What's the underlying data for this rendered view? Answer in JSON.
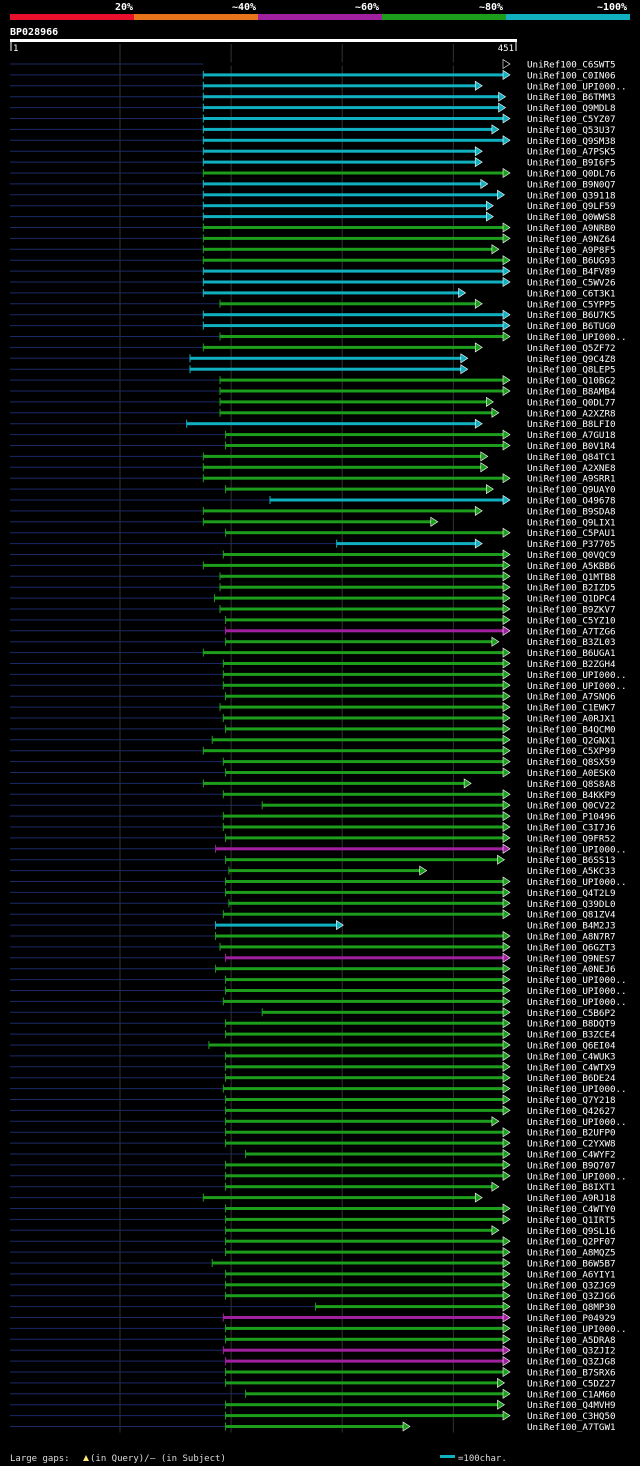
{
  "chart_data": {
    "type": "alignment-overview",
    "title": "",
    "query": {
      "id": "BP028966",
      "start_label": "1",
      "end_label": "451",
      "length": 451
    },
    "identity_scale": [
      {
        "label": "20%",
        "color": "#e8102a"
      },
      {
        "label": "~40%",
        "color": "#e8741c"
      },
      {
        "label": "~60%",
        "color": "#a020a0"
      },
      {
        "label": "~80%",
        "color": "#1c9e1c"
      },
      {
        "label": "~100%",
        "color": "#10b0c0"
      }
    ],
    "legend": {
      "large_gaps": "Large gaps:",
      "in_query": "(in Query)/",
      "in_subject": "– (in Subject)",
      "scale": "=100char.",
      "scale_chars": 100
    },
    "gridlines_at": [
      100,
      200,
      300,
      400
    ],
    "hits": [
      [
        "UniRef100_C6SWT5",
        175,
        451,
        5
      ],
      [
        "UniRef100_C0IN06",
        175,
        451,
        4
      ],
      [
        "UniRef100_UPI000..",
        175,
        426,
        4
      ],
      [
        "UniRef100_B6TMM3",
        175,
        447,
        4
      ],
      [
        "UniRef100_Q9MDL8",
        175,
        447,
        4
      ],
      [
        "UniRef100_C5YZ07",
        175,
        451,
        4
      ],
      [
        "UniRef100_Q53U37",
        175,
        441,
        4
      ],
      [
        "UniRef100_Q9SM38",
        175,
        451,
        4
      ],
      [
        "UniRef100_A7PSK5",
        175,
        426,
        4
      ],
      [
        "UniRef100_B9I6F5",
        175,
        426,
        4
      ],
      [
        "UniRef100_Q0DL76",
        175,
        451,
        3
      ],
      [
        "UniRef100_B9N0Q7",
        175,
        431,
        4
      ],
      [
        "UniRef100_Q39118",
        175,
        446,
        4
      ],
      [
        "UniRef100_Q9LF59",
        175,
        436,
        4
      ],
      [
        "UniRef100_Q0WWS8",
        175,
        436,
        4
      ],
      [
        "UniRef100_A9NRB0",
        175,
        451,
        3
      ],
      [
        "UniRef100_A9NZ64",
        175,
        451,
        3
      ],
      [
        "UniRef100_A9P8F5",
        175,
        441,
        3
      ],
      [
        "UniRef100_B6UG93",
        175,
        451,
        3
      ],
      [
        "UniRef100_B4FV89",
        175,
        451,
        4
      ],
      [
        "UniRef100_C5WV26",
        175,
        451,
        4
      ],
      [
        "UniRef100_C6T3K1",
        175,
        411,
        4
      ],
      [
        "UniRef100_C5YPP5",
        190,
        426,
        3
      ],
      [
        "UniRef100_B6U7K5",
        175,
        451,
        4
      ],
      [
        "UniRef100_B6TUG0",
        175,
        451,
        4
      ],
      [
        "UniRef100_UPI000..",
        190,
        451,
        3
      ],
      [
        "UniRef100_Q5ZF72",
        175,
        426,
        3
      ],
      [
        "UniRef100_Q9C4Z8",
        163,
        413,
        4
      ],
      [
        "UniRef100_Q8LEP5",
        163,
        413,
        4
      ],
      [
        "UniRef100_Q10BG2",
        190,
        451,
        3
      ],
      [
        "UniRef100_B8AMB4",
        190,
        451,
        3
      ],
      [
        "UniRef100_Q0DL77",
        190,
        436,
        3
      ],
      [
        "UniRef100_A2XZR8",
        190,
        441,
        3
      ],
      [
        "UniRef100_B8LFI0",
        160,
        426,
        4
      ],
      [
        "UniRef100_A7GU18",
        195,
        451,
        3
      ],
      [
        "UniRef100_B0V1R4",
        195,
        451,
        3
      ],
      [
        "UniRef100_Q84TC1",
        175,
        431,
        3
      ],
      [
        "UniRef100_A2XNE8",
        175,
        431,
        3
      ],
      [
        "UniRef100_A9SRR1",
        175,
        451,
        3
      ],
      [
        "UniRef100_Q9UAY0",
        195,
        436,
        3
      ],
      [
        "UniRef100_O49678",
        235,
        451,
        4
      ],
      [
        "UniRef100_B9SDA8",
        175,
        426,
        3
      ],
      [
        "UniRef100_Q9LIX1",
        175,
        386,
        3
      ],
      [
        "UniRef100_C5PAU1",
        195,
        451,
        3
      ],
      [
        "UniRef100_P37705",
        295,
        426,
        4
      ],
      [
        "UniRef100_Q0VQC9",
        193,
        451,
        3
      ],
      [
        "UniRef100_A5KBB6",
        175,
        451,
        3
      ],
      [
        "UniRef100_Q1MTB8",
        190,
        451,
        3
      ],
      [
        "UniRef100_B2IZD5",
        190,
        451,
        3
      ],
      [
        "UniRef100_Q1DPC4",
        185,
        451,
        3
      ],
      [
        "UniRef100_B9ZKV7",
        190,
        451,
        3
      ],
      [
        "UniRef100_C5YZ10",
        195,
        451,
        3
      ],
      [
        "UniRef100_A7TZG6",
        195,
        451,
        2
      ],
      [
        "UniRef100_B3ZL03",
        195,
        441,
        3
      ],
      [
        "UniRef100_B6UGA1",
        175,
        451,
        3
      ],
      [
        "UniRef100_B2ZGH4",
        193,
        451,
        3
      ],
      [
        "UniRef100_UPI000..",
        193,
        451,
        3
      ],
      [
        "UniRef100_UPI000..",
        193,
        451,
        3
      ],
      [
        "UniRef100_A7SNQ6",
        195,
        451,
        3
      ],
      [
        "UniRef100_C1EWK7",
        190,
        451,
        3
      ],
      [
        "UniRef100_A0RJX1",
        193,
        451,
        3
      ],
      [
        "UniRef100_B4QCM0",
        195,
        451,
        3
      ],
      [
        "UniRef100_Q2GNX1",
        183,
        451,
        3
      ],
      [
        "UniRef100_C5XP99",
        175,
        451,
        3
      ],
      [
        "UniRef100_Q8SX59",
        193,
        451,
        3
      ],
      [
        "UniRef100_A0ESK0",
        195,
        451,
        3
      ],
      [
        "UniRef100_Q8S8A8",
        175,
        416,
        3
      ],
      [
        "UniRef100_B4KKP9",
        193,
        451,
        3
      ],
      [
        "UniRef100_Q0CV22",
        228,
        451,
        3
      ],
      [
        "UniRef100_P10496",
        193,
        451,
        3
      ],
      [
        "UniRef100_C3I7J6",
        193,
        451,
        3
      ],
      [
        "UniRef100_Q9FR52",
        195,
        451,
        3
      ],
      [
        "UniRef100_UPI000..",
        186,
        451,
        2
      ],
      [
        "UniRef100_B6SS13",
        195,
        446,
        3
      ],
      [
        "UniRef100_A5KC33",
        198,
        376,
        3
      ],
      [
        "UniRef100_UPI000..",
        195,
        451,
        3
      ],
      [
        "UniRef100_Q4T2L9",
        195,
        451,
        3
      ],
      [
        "UniRef100_Q39DL0",
        198,
        451,
        3
      ],
      [
        "UniRef100_Q81ZV4",
        193,
        451,
        3
      ],
      [
        "UniRef100_B4M2J3",
        186,
        301,
        4
      ],
      [
        "UniRef100_A8N7R7",
        186,
        451,
        3
      ],
      [
        "UniRef100_Q6GZT3",
        190,
        451,
        3
      ],
      [
        "UniRef100_Q9NES7",
        195,
        451,
        2
      ],
      [
        "UniRef100_A0NEJ6",
        186,
        451,
        3
      ],
      [
        "UniRef100_UPI000..",
        195,
        451,
        3
      ],
      [
        "UniRef100_UPI000..",
        195,
        451,
        3
      ],
      [
        "UniRef100_UPI000..",
        193,
        451,
        3
      ],
      [
        "UniRef100_C5B6P2",
        228,
        451,
        3
      ],
      [
        "UniRef100_B8DQT9",
        195,
        451,
        3
      ],
      [
        "UniRef100_B3ZCE4",
        195,
        451,
        3
      ],
      [
        "UniRef100_Q6EI04",
        180,
        451,
        3
      ],
      [
        "UniRef100_C4WUK3",
        195,
        451,
        3
      ],
      [
        "UniRef100_C4WTX9",
        195,
        451,
        3
      ],
      [
        "UniRef100_B6DE24",
        195,
        451,
        3
      ],
      [
        "UniRef100_UPI000..",
        193,
        451,
        3
      ],
      [
        "UniRef100_Q7Y218",
        195,
        451,
        3
      ],
      [
        "UniRef100_Q42627",
        195,
        451,
        3
      ],
      [
        "UniRef100_UPI000..",
        195,
        441,
        3
      ],
      [
        "UniRef100_B2UFP0",
        195,
        451,
        3
      ],
      [
        "UniRef100_C2YXW8",
        195,
        451,
        3
      ],
      [
        "UniRef100_C4WYF2",
        213,
        451,
        3
      ],
      [
        "UniRef100_B9Q707",
        195,
        451,
        3
      ],
      [
        "UniRef100_UPI000..",
        195,
        451,
        3
      ],
      [
        "UniRef100_B8IXT1",
        195,
        441,
        3
      ],
      [
        "UniRef100_A9RJ18",
        175,
        426,
        3
      ],
      [
        "UniRef100_C4WTY0",
        195,
        451,
        3
      ],
      [
        "UniRef100_Q1IRT5",
        195,
        451,
        3
      ],
      [
        "UniRef100_Q9SL16",
        195,
        441,
        3
      ],
      [
        "UniRef100_Q2PF07",
        195,
        451,
        3
      ],
      [
        "UniRef100_A8MQZ5",
        195,
        451,
        3
      ],
      [
        "UniRef100_B6W5B7",
        183,
        451,
        3
      ],
      [
        "UniRef100_A6YIY1",
        195,
        451,
        3
      ],
      [
        "UniRef100_Q3ZJG9",
        195,
        451,
        3
      ],
      [
        "UniRef100_Q3ZJG6",
        195,
        451,
        3
      ],
      [
        "UniRef100_Q8MP30",
        276,
        451,
        3
      ],
      [
        "UniRef100_P04929",
        193,
        451,
        2
      ],
      [
        "UniRef100_UPI000..",
        195,
        451,
        3
      ],
      [
        "UniRef100_A5DRA8",
        195,
        451,
        3
      ],
      [
        "UniRef100_Q3ZJI2",
        193,
        451,
        2
      ],
      [
        "UniRef100_Q3ZJG8",
        195,
        451,
        2
      ],
      [
        "UniRef100_B7SRX6",
        195,
        451,
        3
      ],
      [
        "UniRef100_C5DZ27",
        195,
        446,
        3
      ],
      [
        "UniRef100_C1AM60",
        213,
        451,
        3
      ],
      [
        "UniRef100_Q4MVH9",
        195,
        446,
        3
      ],
      [
        "UniRef100_C3HQ50",
        195,
        451,
        3
      ],
      [
        "UniRef100_A7TGW1",
        195,
        361,
        3
      ]
    ]
  }
}
